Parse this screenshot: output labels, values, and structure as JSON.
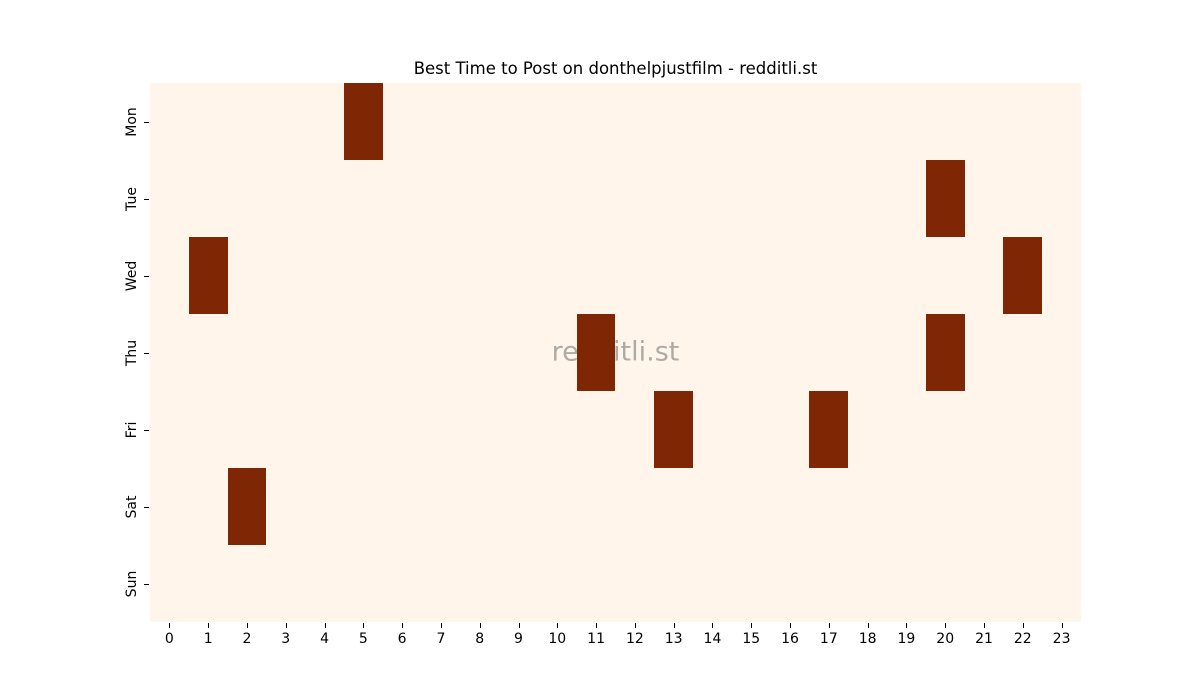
{
  "chart": {
    "title": "Best Time to Post on donthelpjustfilm - redditli.st",
    "watermark": "redditli.st"
  },
  "colors": {
    "background": "#ffffff",
    "plot_background": "#fff5eb",
    "cell_highlight": "#7f2704",
    "text": "#000000",
    "tick": "#000000",
    "watermark": "rgba(125,125,125,0.62)"
  },
  "chart_data": {
    "type": "heatmap",
    "title": "Best Time to Post on donthelpjustfilm - redditli.st",
    "xlabel": "",
    "ylabel": "",
    "x_ticks": [
      "0",
      "1",
      "2",
      "3",
      "4",
      "5",
      "6",
      "7",
      "8",
      "9",
      "10",
      "11",
      "12",
      "13",
      "14",
      "15",
      "16",
      "17",
      "18",
      "19",
      "20",
      "21",
      "22",
      "23"
    ],
    "y_ticks": [
      "Mon",
      "Tue",
      "Wed",
      "Thu",
      "Fri",
      "Sat",
      "Sun"
    ],
    "grid": false,
    "legend": "none",
    "colormap_low": "#fff5eb",
    "colormap_high": "#7f2704",
    "highlighted_cells": [
      {
        "day": "Mon",
        "hour": 5
      },
      {
        "day": "Tue",
        "hour": 20
      },
      {
        "day": "Wed",
        "hour": 1
      },
      {
        "day": "Wed",
        "hour": 22
      },
      {
        "day": "Thu",
        "hour": 11
      },
      {
        "day": "Thu",
        "hour": 20
      },
      {
        "day": "Fri",
        "hour": 13
      },
      {
        "day": "Fri",
        "hour": 17
      },
      {
        "day": "Sat",
        "hour": 2
      }
    ],
    "matrix": [
      [
        0,
        0,
        0,
        0,
        0,
        1,
        0,
        0,
        0,
        0,
        0,
        0,
        0,
        0,
        0,
        0,
        0,
        0,
        0,
        0,
        0,
        0,
        0,
        0
      ],
      [
        0,
        0,
        0,
        0,
        0,
        0,
        0,
        0,
        0,
        0,
        0,
        0,
        0,
        0,
        0,
        0,
        0,
        0,
        0,
        0,
        1,
        0,
        0,
        0
      ],
      [
        0,
        1,
        0,
        0,
        0,
        0,
        0,
        0,
        0,
        0,
        0,
        0,
        0,
        0,
        0,
        0,
        0,
        0,
        0,
        0,
        0,
        0,
        1,
        0
      ],
      [
        0,
        0,
        0,
        0,
        0,
        0,
        0,
        0,
        0,
        0,
        0,
        1,
        0,
        0,
        0,
        0,
        0,
        0,
        0,
        0,
        1,
        0,
        0,
        0
      ],
      [
        0,
        0,
        0,
        0,
        0,
        0,
        0,
        0,
        0,
        0,
        0,
        0,
        0,
        1,
        0,
        0,
        0,
        1,
        0,
        0,
        0,
        0,
        0,
        0
      ],
      [
        0,
        0,
        1,
        0,
        0,
        0,
        0,
        0,
        0,
        0,
        0,
        0,
        0,
        0,
        0,
        0,
        0,
        0,
        0,
        0,
        0,
        0,
        0,
        0
      ],
      [
        0,
        0,
        0,
        0,
        0,
        0,
        0,
        0,
        0,
        0,
        0,
        0,
        0,
        0,
        0,
        0,
        0,
        0,
        0,
        0,
        0,
        0,
        0,
        0
      ]
    ]
  }
}
